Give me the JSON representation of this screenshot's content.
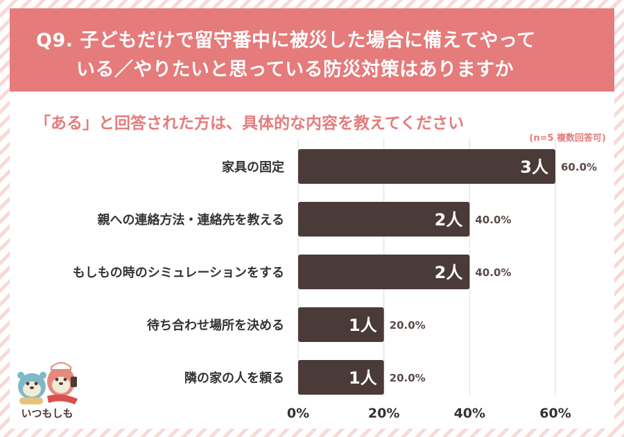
{
  "header": {
    "question_line1": "Q9. 子どもだけで留守番中に被災した場合に備えてやって",
    "question_line2": "いる／やりたいと思っている防災対策はありますか"
  },
  "subtitle": "「ある」と回答された方は、具体的な内容を教えてください",
  "note": "(n=5 複数回答可)",
  "logo": {
    "text": "いつもしも"
  },
  "colors": {
    "banner": "#e57b7b",
    "bar": "#4a3a38",
    "accent": "#e57b7b",
    "stripe": "#f7d9d6"
  },
  "chart_data": {
    "type": "bar",
    "orientation": "horizontal",
    "categories": [
      "家具の固定",
      "親への連絡方法・連絡先を教える",
      "もしもの時のシミュレーションをする",
      "待ち合わせ場所を決める",
      "隣の家の人を頼る"
    ],
    "counts": [
      "3人",
      "2人",
      "2人",
      "1人",
      "1人"
    ],
    "values": [
      60.0,
      40.0,
      40.0,
      20.0,
      20.0
    ],
    "value_labels": [
      "60.0%",
      "40.0%",
      "40.0%",
      "20.0%",
      "20.0%"
    ],
    "xlim": [
      0,
      60
    ],
    "xticks": [
      "0%",
      "20%",
      "40%",
      "60%"
    ],
    "grid": true
  }
}
